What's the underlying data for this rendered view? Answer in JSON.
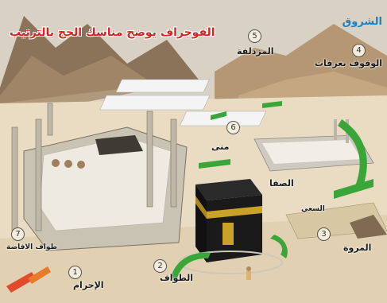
{
  "title": "الفوجراف يوضح مناسك الحج بالترتيب",
  "logo": "الشروق",
  "steps": [
    {
      "number": "1",
      "label": "الإحرام"
    },
    {
      "number": "2",
      "label": "الطواف"
    },
    {
      "number": "3",
      "label": "المروة"
    },
    {
      "number": "4",
      "label": "الوقوف بعرفات"
    },
    {
      "number": "5",
      "label": "المزدلفة"
    },
    {
      "number": "6",
      "label": "منى"
    },
    {
      "number": "7",
      "label": "طواف الافاضة"
    }
  ],
  "extra_labels": {
    "safa": "الصفا",
    "saee": "السعي"
  },
  "colors": {
    "title": "#d8241f",
    "logo": "#1d7fc2",
    "arrow_green": "#3aa63a",
    "arrow_red": "#d9342b",
    "kaaba_gold": "#c9a227",
    "sky": "#d9d2c4",
    "ground": "#e9dcc3"
  }
}
